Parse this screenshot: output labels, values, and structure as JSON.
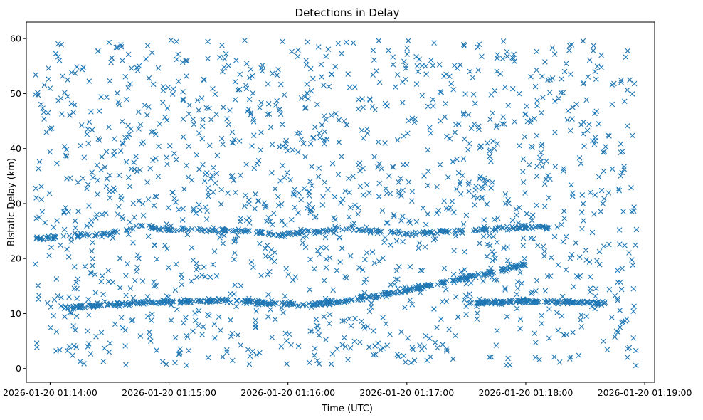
{
  "chart_data": {
    "type": "scatter",
    "title": "Detections in Delay",
    "xlabel": "Time (UTC)",
    "ylabel": "Bistatic Delay (km)",
    "marker": "x",
    "color": "#1f77b4",
    "grid": false,
    "legend": "none",
    "x_tick_labels": [
      "2026-01-20 01:14:00",
      "2026-01-20 01:15:00",
      "2026-01-20 01:16:00",
      "2026-01-20 01:17:00",
      "2026-01-20 01:18:00",
      "2026-01-20 01:19:00"
    ],
    "y_ticks": [
      0,
      10,
      20,
      30,
      40,
      50,
      60
    ],
    "xlim": [
      "2026-01-20 01:13:48",
      "2026-01-20 01:19:05"
    ],
    "ylim": [
      -2.5,
      63
    ],
    "x_data_range": [
      "2026-01-20 01:13:52",
      "2026-01-20 01:18:56"
    ],
    "series": [
      {
        "values": "random clutter detections uniformly spread over 0–60 km across the full time span (~1500 points)"
      },
      {
        "values": [
          {
            "t": "2026-01-20 01:13:53",
            "delay": 23.6
          },
          {
            "t": "2026-01-20 01:14:30",
            "delay": 24.5
          },
          {
            "t": "2026-01-20 01:14:45",
            "delay": 25.8
          },
          {
            "t": "2026-01-20 01:15:00",
            "delay": 25.3
          },
          {
            "t": "2026-01-20 01:15:40",
            "delay": 25.0
          },
          {
            "t": "2026-01-20 01:15:55",
            "delay": 24.3
          },
          {
            "t": "2026-01-20 01:16:30",
            "delay": 25.5
          },
          {
            "t": "2026-01-20 01:17:00",
            "delay": 24.4
          },
          {
            "t": "2026-01-20 01:17:25",
            "delay": 25.0
          },
          {
            "t": "2026-01-20 01:17:58",
            "delay": 25.7
          },
          {
            "t": "2026-01-20 01:18:12",
            "delay": 25.6
          }
        ]
      },
      {
        "values": [
          {
            "t": "2026-01-20 01:14:05",
            "delay": 11.2
          },
          {
            "t": "2026-01-20 01:14:40",
            "delay": 11.8
          },
          {
            "t": "2026-01-20 01:15:00",
            "delay": 12.1
          },
          {
            "t": "2026-01-20 01:15:25",
            "delay": 12.4
          },
          {
            "t": "2026-01-20 01:15:45",
            "delay": 12.0
          },
          {
            "t": "2026-01-20 01:16:10",
            "delay": 11.6
          },
          {
            "t": "2026-01-20 01:16:30",
            "delay": 12.3
          },
          {
            "t": "2026-01-20 01:17:00",
            "delay": 14.2
          },
          {
            "t": "2026-01-20 01:17:20",
            "delay": 15.8
          },
          {
            "t": "2026-01-20 01:17:35",
            "delay": 16.8
          },
          {
            "t": "2026-01-20 01:18:00",
            "delay": 18.9
          }
        ]
      },
      {
        "values": [
          {
            "t": "2026-01-20 01:17:35",
            "delay": 12.0
          },
          {
            "t": "2026-01-20 01:18:00",
            "delay": 12.2
          },
          {
            "t": "2026-01-20 01:18:25",
            "delay": 12.1
          },
          {
            "t": "2026-01-20 01:18:40",
            "delay": 11.9
          }
        ]
      }
    ]
  }
}
